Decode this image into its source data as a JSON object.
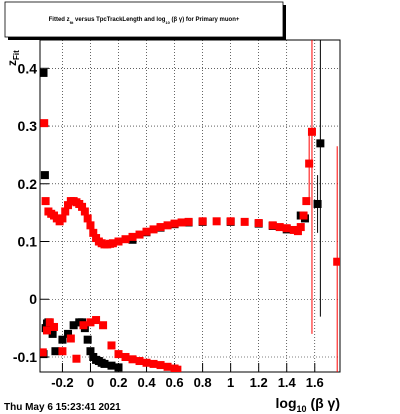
{
  "chart_data": {
    "type": "scatter",
    "title": [
      "Fitted z",
      "fit",
      " versus TpcTrackLength and log",
      "10",
      " (β γ) for Primary muon+"
    ],
    "x_label": [
      "log",
      "10",
      " (β γ)"
    ],
    "y_label": [
      "z",
      "Fit"
    ],
    "footer": "Thu May  6 15:23:41 2021",
    "xlim": [
      -0.36,
      1.78
    ],
    "ylim": [
      -0.126,
      0.449
    ],
    "xticks": [
      -0.2,
      0,
      0.2,
      0.4,
      0.6,
      0.8,
      1,
      1.2,
      1.4,
      1.6
    ],
    "yticks": [
      -0.1,
      0,
      0.1,
      0.2,
      0.3,
      0.4
    ],
    "grid": true,
    "series": [
      {
        "name": "black",
        "color": "#000000",
        "x": [
          -0.335,
          -0.325,
          -0.335,
          -0.32,
          -0.31,
          -0.3,
          -0.29,
          -0.27,
          -0.25,
          -0.2,
          -0.16,
          -0.12,
          -0.08,
          -0.06,
          -0.04,
          -0.02,
          0,
          0.02,
          0.04,
          0.06,
          0.08,
          0.1,
          0.15,
          0.2,
          0.3,
          0.4,
          0.5,
          0.6,
          0.7,
          0.8,
          1.0,
          1.2,
          1.3,
          1.4,
          1.5,
          1.53,
          1.62,
          1.64
        ],
        "values": [
          0.392,
          0.215,
          -0.095,
          -0.05,
          -0.042,
          -0.04,
          -0.048,
          -0.06,
          -0.09,
          -0.07,
          -0.06,
          -0.045,
          -0.04,
          -0.04,
          -0.05,
          -0.07,
          -0.09,
          -0.1,
          -0.105,
          -0.107,
          -0.11,
          -0.112,
          -0.115,
          -0.118,
          0.103,
          0.116,
          0.124,
          0.13,
          0.133,
          0.134,
          0.134,
          0.131,
          0.127,
          0.121,
          0.145,
          0.14,
          0.165,
          0.27
        ],
        "errors": [
          null,
          null,
          null,
          null,
          null,
          null,
          null,
          null,
          null,
          null,
          null,
          null,
          null,
          null,
          null,
          null,
          null,
          null,
          null,
          null,
          null,
          null,
          null,
          null,
          null,
          null,
          null,
          null,
          null,
          null,
          null,
          null,
          null,
          null,
          null,
          null,
          0.05,
          0.3
        ]
      },
      {
        "name": "red",
        "color": "#ff0000",
        "x": [
          -0.33,
          -0.32,
          -0.3,
          -0.28,
          -0.26,
          -0.24,
          -0.22,
          -0.2,
          -0.18,
          -0.16,
          -0.14,
          -0.12,
          -0.1,
          -0.08,
          -0.06,
          -0.04,
          -0.02,
          0,
          0.02,
          0.04,
          0.06,
          0.08,
          0.1,
          0.12,
          0.14,
          0.16,
          0.2,
          0.25,
          0.3,
          0.35,
          0.4,
          0.45,
          0.5,
          0.55,
          0.6,
          0.65,
          0.7,
          0.8,
          0.9,
          1.0,
          1.1,
          1.2,
          1.3,
          1.35,
          1.4,
          1.45,
          1.48,
          1.5,
          1.52,
          1.54,
          1.56,
          1.58,
          1.76,
          -0.34,
          -0.31,
          -0.29,
          -0.26,
          -0.2,
          -0.14,
          -0.1,
          -0.05,
          0,
          0.04,
          0.09,
          0.15,
          0.2,
          0.25,
          0.3,
          0.35,
          0.4,
          0.45,
          0.5,
          0.55,
          0.6,
          0.62
        ],
        "values": [
          0.305,
          0.17,
          0.152,
          0.148,
          0.145,
          0.14,
          0.135,
          0.14,
          0.152,
          0.163,
          0.17,
          0.17,
          0.168,
          0.165,
          0.16,
          0.152,
          0.14,
          0.128,
          0.115,
          0.106,
          0.1,
          0.097,
          0.095,
          0.095,
          0.096,
          0.097,
          0.1,
          0.104,
          0.108,
          0.112,
          0.117,
          0.121,
          0.125,
          0.128,
          0.131,
          0.133,
          0.134,
          0.135,
          0.135,
          0.135,
          0.134,
          0.132,
          0.128,
          0.125,
          0.123,
          0.12,
          0.118,
          0.125,
          0.145,
          0.17,
          0.235,
          0.29,
          0.065,
          -0.092,
          -0.054,
          -0.04,
          -0.048,
          -0.09,
          -0.068,
          -0.103,
          -0.045,
          -0.04,
          -0.036,
          -0.045,
          -0.08,
          -0.095,
          -0.1,
          -0.104,
          -0.107,
          -0.11,
          -0.112,
          -0.114,
          -0.117,
          -0.12,
          -0.122
        ],
        "errors": [
          null,
          null,
          null,
          null,
          null,
          null,
          null,
          null,
          null,
          null,
          null,
          null,
          null,
          null,
          null,
          null,
          null,
          null,
          null,
          null,
          null,
          null,
          null,
          null,
          null,
          null,
          null,
          null,
          null,
          null,
          null,
          null,
          null,
          null,
          null,
          null,
          null,
          null,
          null,
          null,
          null,
          null,
          null,
          null,
          null,
          null,
          null,
          null,
          null,
          null,
          0.06,
          0.35,
          0.2,
          null,
          null,
          null,
          null,
          null,
          null,
          null,
          null,
          null,
          null,
          null,
          null,
          null,
          null,
          null,
          null,
          null,
          null,
          null,
          null,
          null,
          null
        ]
      }
    ]
  }
}
